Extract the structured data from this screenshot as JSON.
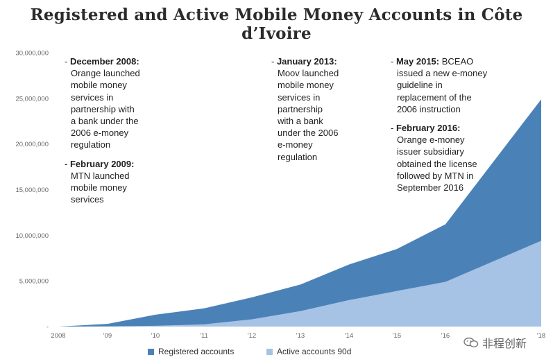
{
  "chart_data": {
    "type": "area",
    "title": "Registered and Active Mobile Money Accounts in Côte d’Ivoire",
    "x_labels": [
      "2008",
      "'09",
      "'10",
      "'11",
      "'12",
      "'13",
      "'14",
      "'15",
      "'16",
      "'18"
    ],
    "y_ticks": [
      "-",
      "5,000,000",
      "10,000,000",
      "15,000,000",
      "20,000,000",
      "25,000,000",
      "30,000,000"
    ],
    "ylim": [
      0,
      30000000
    ],
    "series": [
      {
        "name": "Registered accounts",
        "color": "#4a82b8",
        "values": [
          0,
          300000,
          1300000,
          2000000,
          3200000,
          4600000,
          6800000,
          8500000,
          11200000,
          24900000
        ]
      },
      {
        "name": "Active accounts 90d",
        "color": "#a6c2e4",
        "values": [
          0,
          20000,
          80000,
          250000,
          800000,
          1700000,
          2900000,
          3900000,
          4900000,
          9400000
        ]
      }
    ],
    "grid": false,
    "legend_position": "bottom"
  },
  "annotations": [
    {
      "items": [
        {
          "head": "December 2008:",
          "body": "Orange launched mobile money services in partnership with a bank under the 2006 e-money regulation",
          "lines": [
            "Orange launched",
            "mobile money",
            "services in",
            "partnership with",
            "a bank under the",
            "2006 e-money",
            "regulation"
          ]
        },
        {
          "head": "February 2009:",
          "body": "MTN launched mobile money services",
          "lines": [
            "MTN launched",
            "mobile money",
            "services"
          ]
        }
      ]
    },
    {
      "items": [
        {
          "head": "January 2013:",
          "body": "Moov launched mobile money services in partnership with a bank under the 2006 e-money regulation",
          "lines": [
            "Moov launched",
            "mobile money",
            "services in",
            "partnership",
            "with a bank",
            "under the 2006",
            "e-money",
            "regulation"
          ]
        }
      ]
    },
    {
      "items": [
        {
          "head": "May 2015:",
          "body": "BCEAO issued a new e-money guideline in replacement of the 2006 instruction",
          "lines": [
            "issued a new e-money",
            "guideline in",
            "replacement of the",
            "2006 instruction"
          ],
          "first_line_tail": "BCEAO"
        },
        {
          "head": "February 2016:",
          "body": "Orange e-money issuer subsidiary obtained the license followed by MTN in September 2016",
          "lines": [
            "Orange e-money",
            "issuer subsidiary",
            "obtained the license",
            "followed by MTN in",
            "September 2016"
          ]
        }
      ]
    }
  ],
  "watermark": {
    "text": "非程创新",
    "icon": "wechat-logo-icon"
  }
}
